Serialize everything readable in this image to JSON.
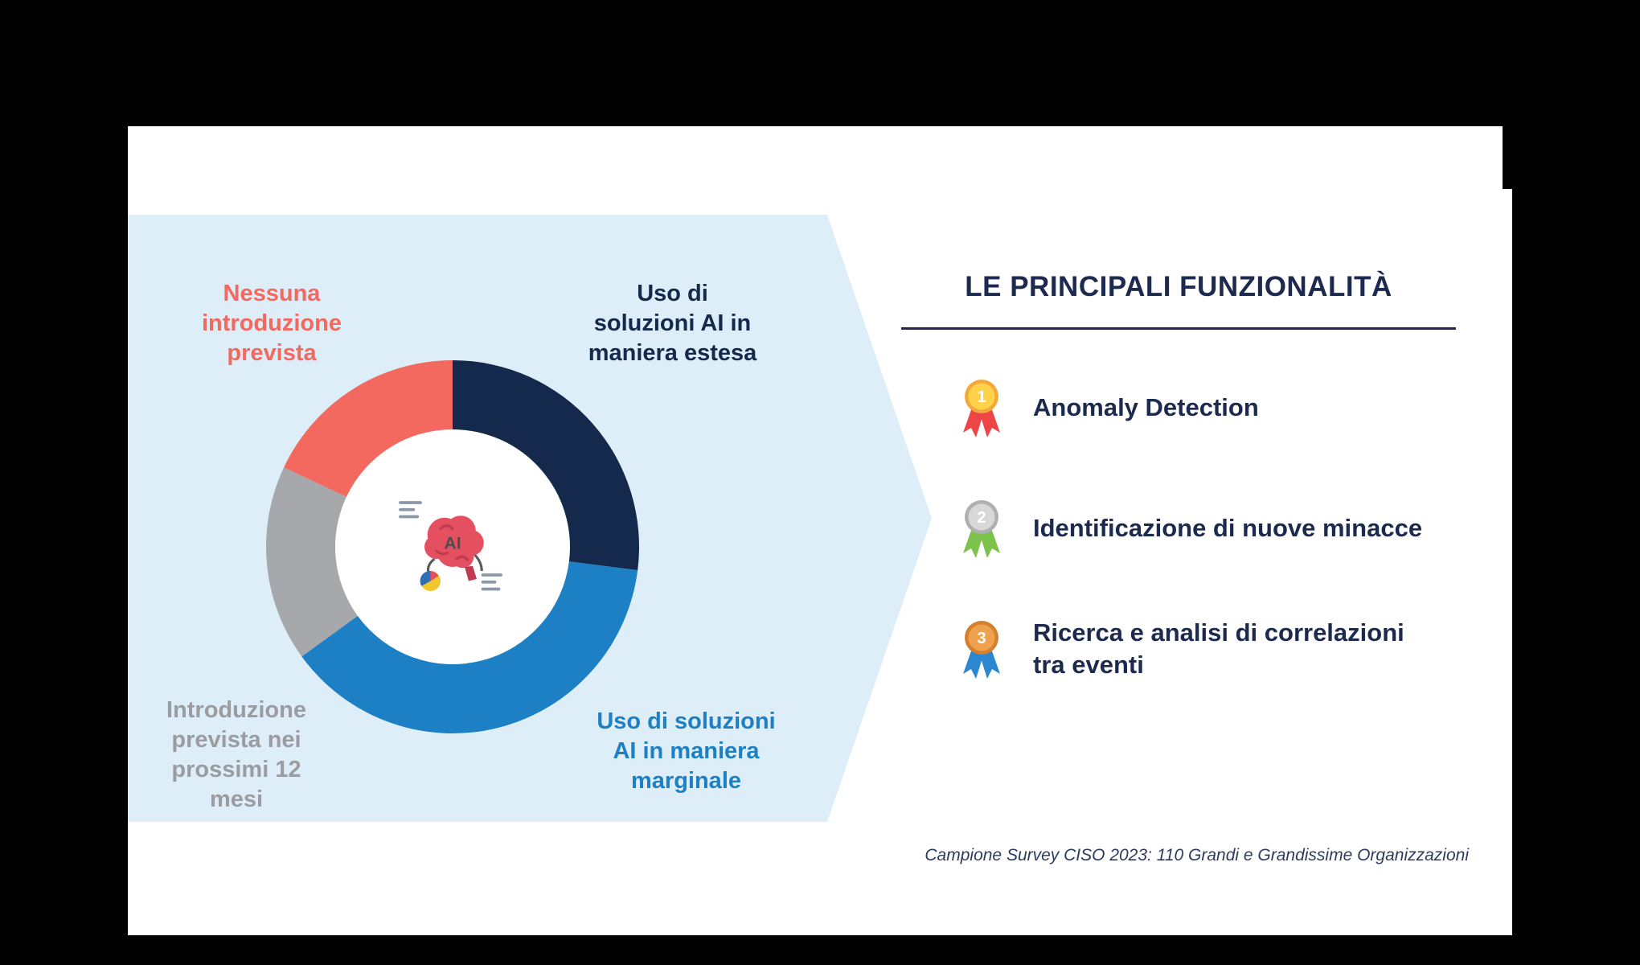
{
  "slide": {
    "background": "#ffffff",
    "canvas_background": "#000000"
  },
  "chart_panel": {
    "background": "#ddeef9",
    "center_icon_label": "AI",
    "labels": {
      "nessuna": {
        "text": "Nessuna\nintroduzione\nprevista",
        "color": "#f4695f"
      },
      "estesa": {
        "text": "Uso di\nsoluzioni AI in\nmaniera estesa",
        "color": "#14294b"
      },
      "marginale": {
        "text": "Uso di soluzioni\nAI in maniera\nmarginale",
        "color": "#1d7fc4"
      },
      "prossimi": {
        "text": "Introduzione\nprevista nei\nprossimi 12\nmesi",
        "color": "#9b9ca0"
      }
    }
  },
  "chart_data": {
    "type": "pie",
    "donut": true,
    "inner_radius_ratio": 0.63,
    "start_angle_deg": 0,
    "direction": "clockwise",
    "legend_position": "around-chart",
    "segments": [
      {
        "label": "Uso di soluzioni AI in maniera estesa",
        "value": 27,
        "color": "#14294b"
      },
      {
        "label": "Uso di soluzioni AI in maniera marginale",
        "value": 38,
        "color": "#1d7fc4"
      },
      {
        "label": "Introduzione prevista nei prossimi 12 mesi",
        "value": 17,
        "color": "#a7a8ac"
      },
      {
        "label": "Nessuna introduzione prevista",
        "value": 18,
        "color": "#f4695f"
      }
    ],
    "note": "Percentages estimated from arc angles; no numeric labels shown in source image."
  },
  "right_panel": {
    "title": "LE PRINCIPALI FUNZIONALITÀ",
    "title_color": "#1b2a4e",
    "items": [
      {
        "rank": "1",
        "label": "Anomaly Detection",
        "medal": {
          "circle": "#ffd24a",
          "ring": "#f2a93b",
          "ribbon": "#ee4646"
        }
      },
      {
        "rank": "2",
        "label": "Identificazione di nuove minacce",
        "medal": {
          "circle": "#d8d8d8",
          "ring": "#b0b0b0",
          "ribbon": "#7dc24b"
        }
      },
      {
        "rank": "3",
        "label": "Ricerca e analisi di correlazioni\ntra eventi",
        "medal": {
          "circle": "#efa14e",
          "ring": "#d3802f",
          "ribbon": "#2a87d0"
        }
      }
    ],
    "footer": "Campione Survey CISO 2023: 110 Grandi e Grandissime Organizzazioni"
  }
}
